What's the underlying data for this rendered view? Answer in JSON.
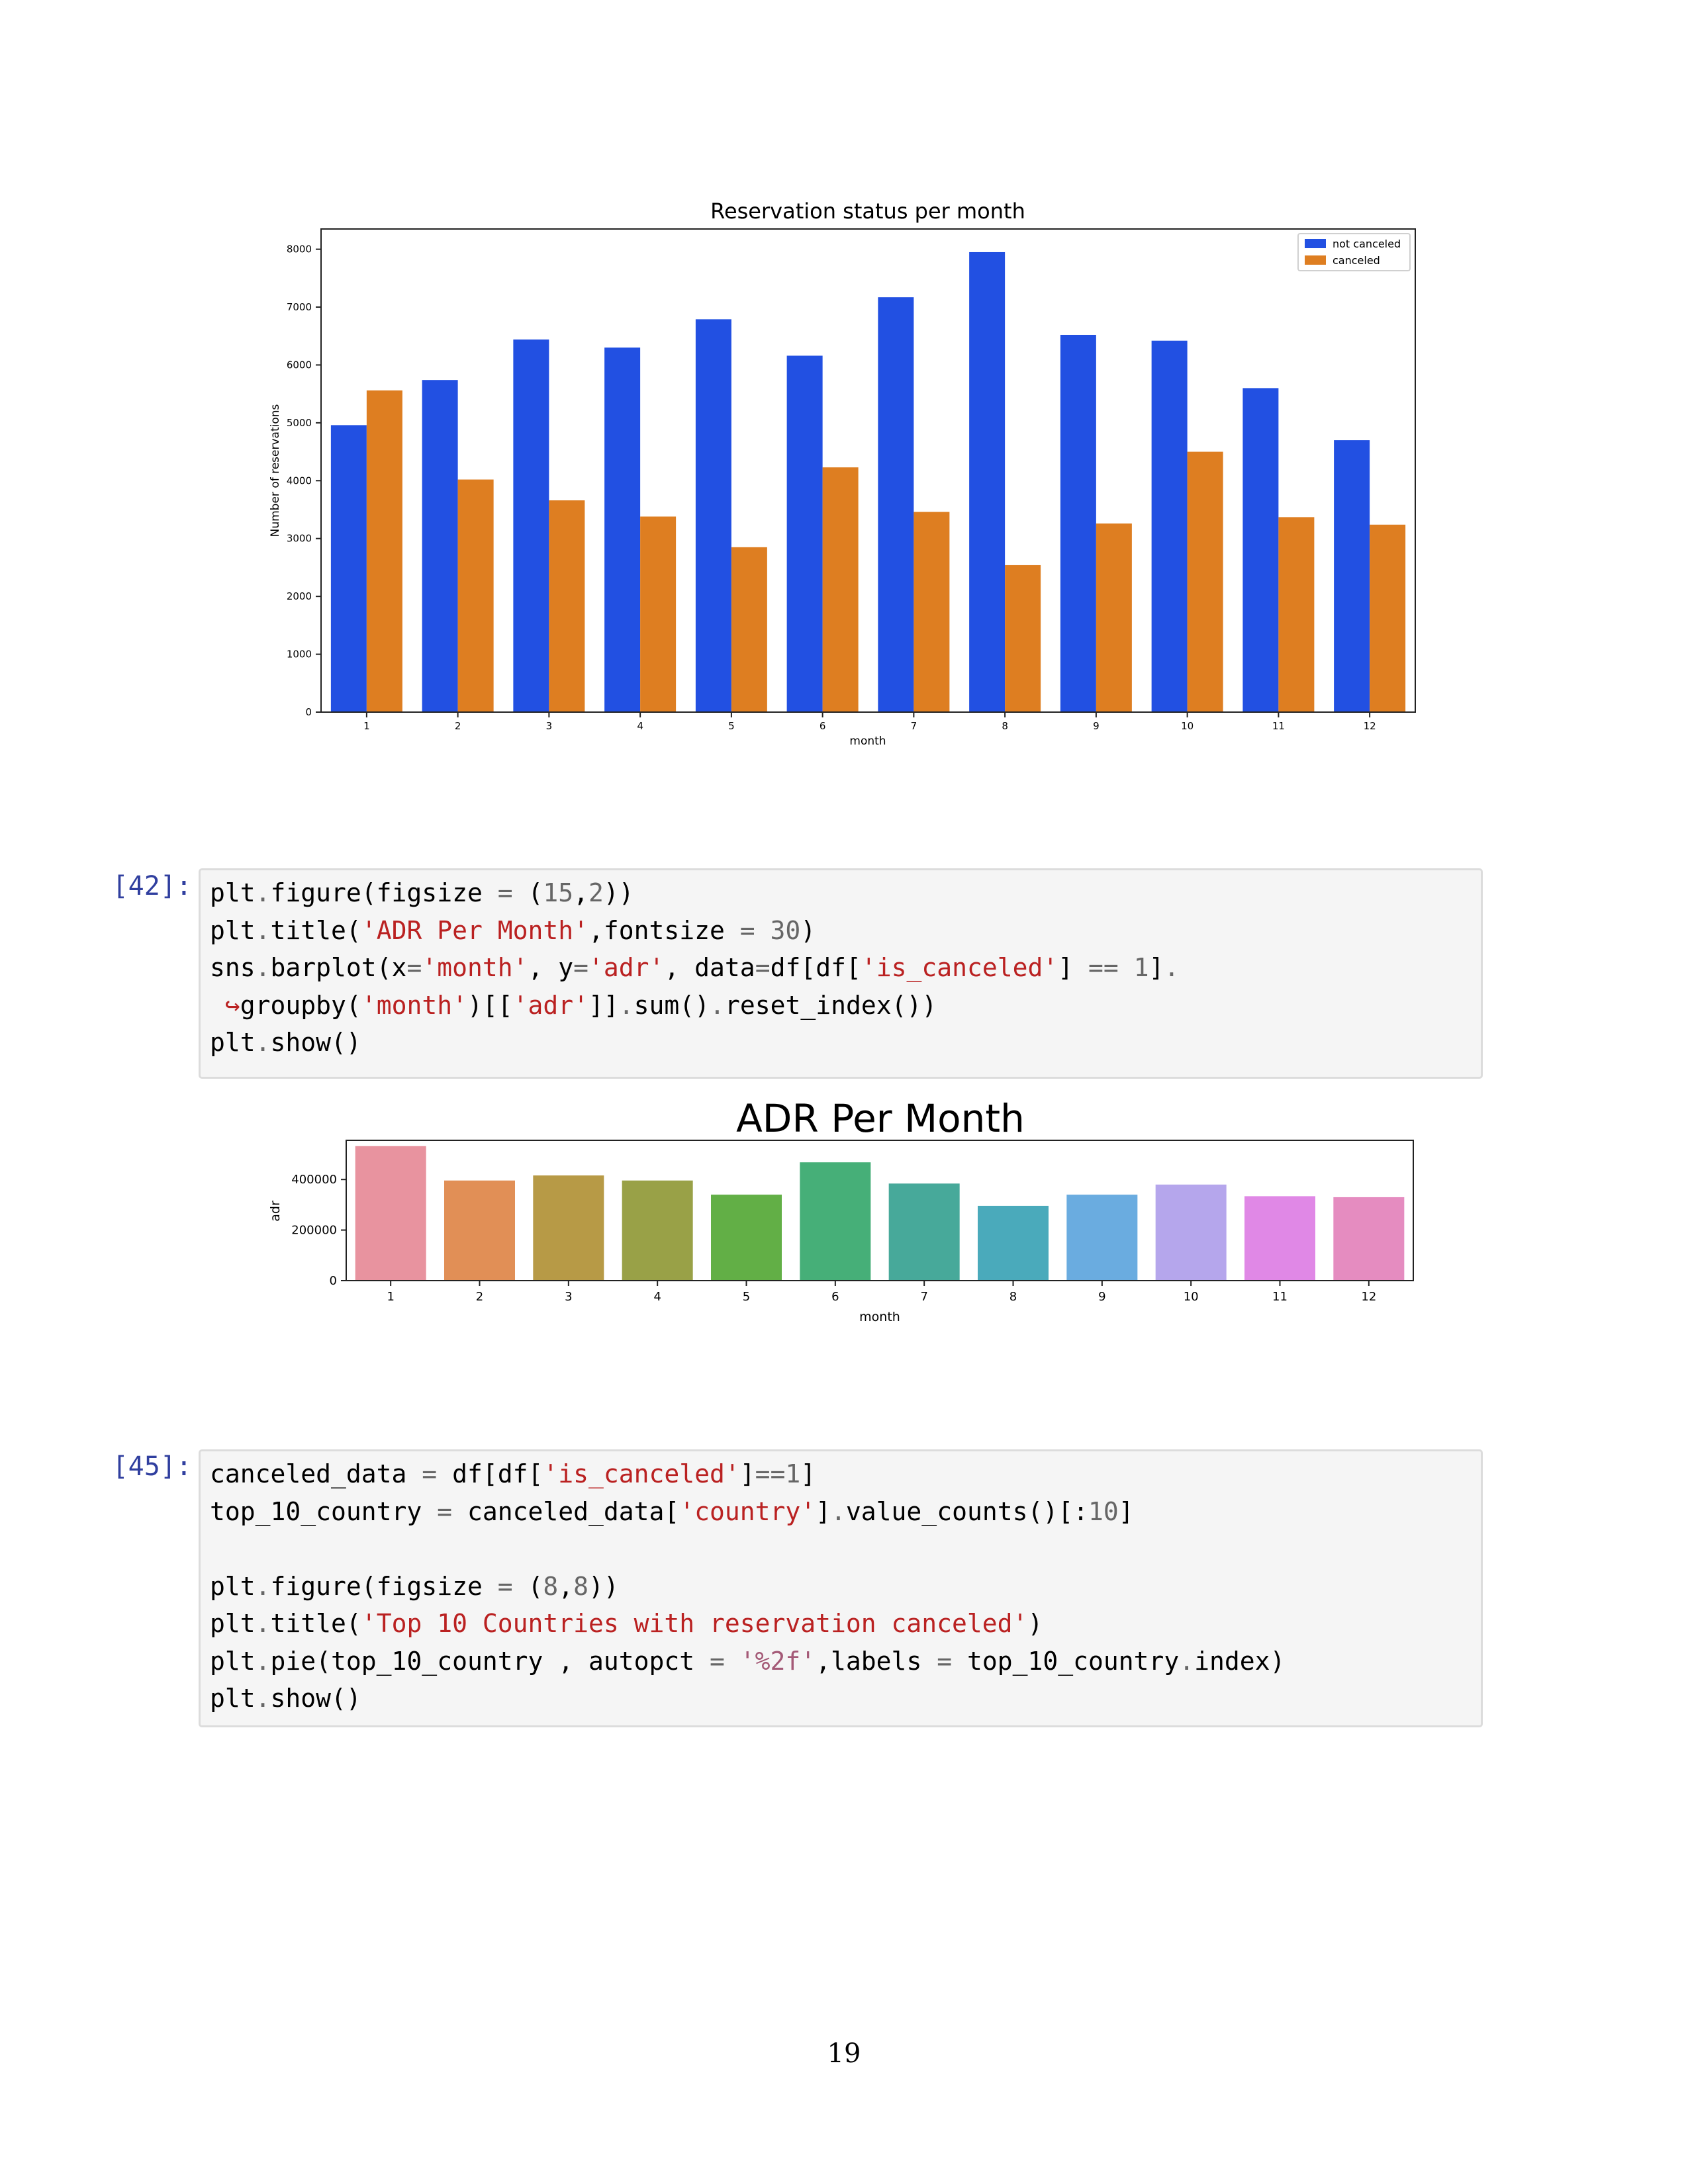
{
  "chart_data": [
    {
      "type": "bar",
      "title": "Reservation status per month",
      "xlabel": "month",
      "ylabel": "Number of reservations",
      "categories": [
        "1",
        "2",
        "3",
        "4",
        "5",
        "6",
        "7",
        "8",
        "9",
        "10",
        "11",
        "12"
      ],
      "ylim": [
        0,
        8350
      ],
      "yticks": [
        0,
        1000,
        2000,
        3000,
        4000,
        5000,
        6000,
        7000,
        8000
      ],
      "legend": "top-right",
      "series": [
        {
          "name": "not canceled",
          "color": "#2250e2",
          "values": [
            4960,
            5740,
            6440,
            6300,
            6790,
            6160,
            7170,
            7950,
            6520,
            6420,
            5600,
            4700
          ]
        },
        {
          "name": "canceled",
          "color": "#de7e21",
          "values": [
            5560,
            4020,
            3660,
            3380,
            2850,
            4230,
            3460,
            2540,
            3260,
            4500,
            3370,
            3240
          ]
        }
      ]
    },
    {
      "type": "bar",
      "title": "ADR Per Month",
      "xlabel": "month",
      "ylabel": "adr",
      "categories": [
        "1",
        "2",
        "3",
        "4",
        "5",
        "6",
        "7",
        "8",
        "9",
        "10",
        "11",
        "12"
      ],
      "ylim": [
        0,
        555000
      ],
      "yticks": [
        0,
        200000,
        400000
      ],
      "values": [
        532000,
        396000,
        416000,
        396000,
        340000,
        468000,
        384000,
        296000,
        340000,
        380000,
        334000,
        330000
      ],
      "colors": [
        "#e8939f",
        "#e18f56",
        "#b79a46",
        "#99a147",
        "#62af46",
        "#46af78",
        "#47a99a",
        "#4aaabb",
        "#6aace0",
        "#b5a6ec",
        "#e088e6",
        "#e58cc0"
      ]
    }
  ],
  "cells": [
    {
      "prompt": "[42]:",
      "lines": [
        [
          [
            "plt",
            ""
          ],
          [
            ".",
            "o"
          ],
          [
            "figure(figsize ",
            ""
          ],
          [
            "=",
            "o"
          ],
          [
            " (",
            ""
          ],
          [
            "15",
            "n"
          ],
          [
            ",",
            ""
          ],
          [
            "2",
            "n"
          ],
          [
            "))",
            ""
          ]
        ],
        [
          [
            "plt",
            ""
          ],
          [
            ".",
            "o"
          ],
          [
            "title(",
            ""
          ],
          [
            "'ADR Per Month'",
            "s"
          ],
          [
            ",fontsize ",
            ""
          ],
          [
            "=",
            "o"
          ],
          [
            " ",
            ""
          ],
          [
            "30",
            "n"
          ],
          [
            ")",
            ""
          ]
        ],
        [
          [
            "sns",
            ""
          ],
          [
            ".",
            "o"
          ],
          [
            "barplot(x",
            ""
          ],
          [
            "=",
            "o"
          ],
          [
            "'month'",
            "s"
          ],
          [
            ", y",
            ""
          ],
          [
            "=",
            "o"
          ],
          [
            "'adr'",
            "s"
          ],
          [
            ", data",
            ""
          ],
          [
            "=",
            "o"
          ],
          [
            "df[df[",
            ""
          ],
          [
            "'is_canceled'",
            "s"
          ],
          [
            "] ",
            ""
          ],
          [
            "==",
            "o"
          ],
          [
            " ",
            ""
          ],
          [
            "1",
            "n"
          ],
          [
            "]",
            ""
          ],
          [
            ".",
            "o"
          ]
        ],
        [
          [
            " ",
            ""
          ],
          [
            "↪",
            "arr"
          ],
          [
            "groupby(",
            ""
          ],
          [
            "'month'",
            "s"
          ],
          [
            ")[[",
            ""
          ],
          [
            "'adr'",
            "s"
          ],
          [
            "]]",
            ""
          ],
          [
            ".",
            "o"
          ],
          [
            "sum()",
            ""
          ],
          [
            ".",
            "o"
          ],
          [
            "reset_index())",
            ""
          ]
        ],
        [
          [
            "plt",
            ""
          ],
          [
            ".",
            "o"
          ],
          [
            "show()",
            ""
          ]
        ]
      ]
    },
    {
      "prompt": "[45]:",
      "lines": [
        [
          [
            "canceled_data ",
            ""
          ],
          [
            "=",
            "o"
          ],
          [
            " df[df[",
            ""
          ],
          [
            "'is_canceled'",
            "s"
          ],
          [
            "]",
            ""
          ],
          [
            "==",
            "o"
          ],
          [
            "1",
            "n"
          ],
          [
            "]",
            ""
          ]
        ],
        [
          [
            "top_10_country ",
            ""
          ],
          [
            "=",
            "o"
          ],
          [
            " canceled_data[",
            ""
          ],
          [
            "'country'",
            "s"
          ],
          [
            "]",
            ""
          ],
          [
            ".",
            "o"
          ],
          [
            "value_counts()[:",
            ""
          ],
          [
            "10",
            "n"
          ],
          [
            "]",
            ""
          ]
        ],
        [],
        [
          [
            "plt",
            ""
          ],
          [
            ".",
            "o"
          ],
          [
            "figure(figsize ",
            ""
          ],
          [
            "=",
            "o"
          ],
          [
            " (",
            ""
          ],
          [
            "8",
            "n"
          ],
          [
            ",",
            ""
          ],
          [
            "8",
            "n"
          ],
          [
            "))",
            ""
          ]
        ],
        [
          [
            "plt",
            ""
          ],
          [
            ".",
            "o"
          ],
          [
            "title(",
            ""
          ],
          [
            "'Top 10 Countries with reservation canceled'",
            "s"
          ],
          [
            ")",
            ""
          ]
        ],
        [
          [
            "plt",
            ""
          ],
          [
            ".",
            "o"
          ],
          [
            "pie(top_10_country , autopct ",
            ""
          ],
          [
            "=",
            "o"
          ],
          [
            " ",
            ""
          ],
          [
            "'%2f'",
            "sa"
          ],
          [
            ",labels ",
            ""
          ],
          [
            "=",
            "o"
          ],
          [
            " top_10_country",
            ""
          ],
          [
            ".",
            "o"
          ],
          [
            "index)",
            ""
          ]
        ],
        [
          [
            "plt",
            ""
          ],
          [
            ".",
            "o"
          ],
          [
            "show()",
            ""
          ]
        ]
      ]
    }
  ],
  "page_number": "19"
}
